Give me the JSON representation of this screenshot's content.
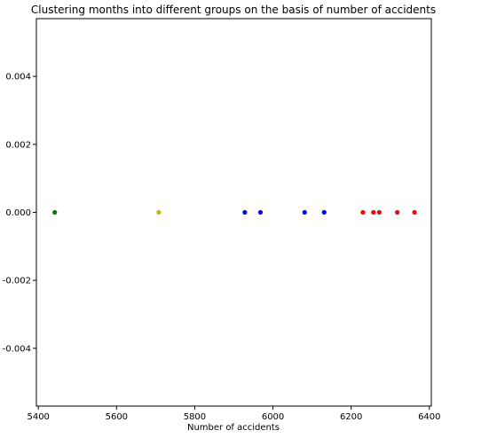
{
  "chart_data": {
    "type": "scatter",
    "title": "Clustering months into different groups on the basis of number of accidents",
    "xlabel": "Number of accidents",
    "ylabel": "",
    "xlim": [
      5395,
      6405
    ],
    "ylim": [
      -0.0057,
      0.0057
    ],
    "xticks": [
      5400,
      5600,
      5800,
      6000,
      6200,
      6400
    ],
    "xtick_labels": [
      "5400",
      "5600",
      "5800",
      "6000",
      "6200",
      "6400"
    ],
    "yticks": [
      0.004,
      0.002,
      0.0,
      -0.002,
      -0.004
    ],
    "ytick_labels": [
      "0.004",
      "0.002",
      "0.000",
      "-0.002",
      "-0.004"
    ],
    "grid": false,
    "points": [
      {
        "x": 5442,
        "y": 0.0,
        "color": "#008000"
      },
      {
        "x": 5708,
        "y": 0.0,
        "color": "#bfbf00"
      },
      {
        "x": 5928,
        "y": 0.0,
        "color": "#0000ff"
      },
      {
        "x": 5968,
        "y": 0.0,
        "color": "#0000ff"
      },
      {
        "x": 6081,
        "y": 0.0,
        "color": "#0000ff"
      },
      {
        "x": 6131,
        "y": 0.0,
        "color": "#0000ff"
      },
      {
        "x": 6230,
        "y": 0.0,
        "color": "#ff0000"
      },
      {
        "x": 6257,
        "y": 0.0,
        "color": "#ff0000"
      },
      {
        "x": 6272,
        "y": 0.0,
        "color": "#ff0000"
      },
      {
        "x": 6318,
        "y": 0.0,
        "color": "#ff0000"
      },
      {
        "x": 6362,
        "y": 0.0,
        "color": "#ff0000"
      }
    ]
  }
}
